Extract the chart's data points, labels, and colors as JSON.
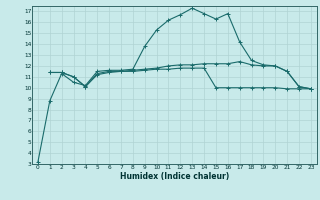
{
  "xlabel": "Humidex (Indice chaleur)",
  "bg_color": "#c8eaea",
  "grid_color": "#b0d4d4",
  "line_color": "#1a6b6b",
  "xlim": [
    -0.5,
    23.5
  ],
  "ylim": [
    3,
    17.5
  ],
  "yticks": [
    3,
    4,
    5,
    6,
    7,
    8,
    9,
    10,
    11,
    12,
    13,
    14,
    15,
    16,
    17
  ],
  "xticks": [
    0,
    1,
    2,
    3,
    4,
    5,
    6,
    7,
    8,
    9,
    10,
    11,
    12,
    13,
    14,
    15,
    16,
    17,
    18,
    19,
    20,
    21,
    22,
    23
  ],
  "line1_x": [
    0,
    1,
    2,
    3,
    4,
    5,
    6,
    7,
    8,
    9,
    10,
    11,
    12,
    13,
    14,
    15,
    16,
    17,
    18,
    19,
    20,
    21,
    22,
    23
  ],
  "line1_y": [
    3.2,
    8.8,
    11.3,
    10.5,
    10.2,
    11.5,
    11.6,
    11.6,
    11.7,
    13.8,
    15.3,
    16.2,
    16.7,
    17.3,
    16.8,
    16.3,
    16.8,
    14.2,
    12.5,
    12.1,
    12.0,
    11.5,
    10.1,
    9.9
  ],
  "line2_x": [
    1,
    2,
    3,
    4,
    5,
    6,
    7,
    8,
    9,
    10,
    11,
    12,
    13,
    14,
    15,
    16,
    17,
    18,
    19,
    20,
    21,
    22,
    23
  ],
  "line2_y": [
    11.4,
    11.4,
    11.0,
    10.1,
    11.3,
    11.5,
    11.5,
    11.6,
    11.7,
    11.8,
    12.0,
    12.1,
    12.1,
    12.2,
    12.2,
    12.2,
    12.4,
    12.1,
    12.0,
    12.0,
    11.5,
    10.1,
    9.9
  ],
  "line3_x": [
    1,
    2,
    3,
    4,
    5,
    6,
    7,
    8,
    9,
    10,
    11,
    12,
    13,
    14,
    15,
    16,
    17,
    18,
    19,
    20,
    21,
    22,
    23
  ],
  "line3_y": [
    11.4,
    11.4,
    11.0,
    10.1,
    11.2,
    11.4,
    11.5,
    11.5,
    11.6,
    11.7,
    11.7,
    11.8,
    11.8,
    11.8,
    10.0,
    10.0,
    10.0,
    10.0,
    10.0,
    10.0,
    9.9,
    9.9,
    9.9
  ]
}
